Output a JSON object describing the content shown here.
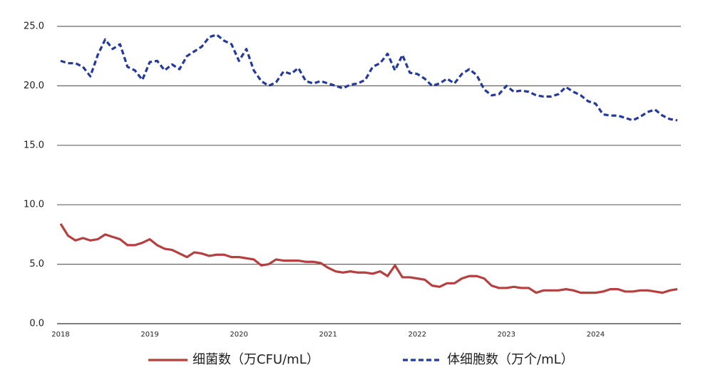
{
  "chart_data": {
    "type": "line",
    "categories": [
      "2018",
      null,
      null,
      null,
      null,
      null,
      null,
      null,
      null,
      null,
      null,
      null,
      "2019",
      null,
      null,
      null,
      null,
      null,
      null,
      null,
      null,
      null,
      null,
      null,
      "2020",
      null,
      null,
      null,
      null,
      null,
      null,
      null,
      null,
      null,
      null,
      null,
      "2021",
      null,
      null,
      null,
      null,
      null,
      null,
      null,
      null,
      null,
      null,
      null,
      "2022",
      null,
      null,
      null,
      null,
      null,
      null,
      null,
      null,
      null,
      null,
      null,
      "2023",
      null,
      null,
      null,
      null,
      null,
      null,
      null,
      null,
      null,
      null,
      null,
      "2024",
      null,
      null,
      null,
      null,
      null,
      null,
      null,
      null,
      null,
      null,
      null
    ],
    "series": [
      {
        "name": "细菌数（万CFU/mL）",
        "color": "#b5403f",
        "dash": false,
        "values": [
          8.4,
          7.4,
          7.0,
          7.2,
          7.0,
          7.1,
          7.5,
          7.3,
          7.1,
          6.6,
          6.6,
          6.8,
          7.1,
          6.6,
          6.3,
          6.2,
          5.9,
          5.6,
          6.0,
          5.9,
          5.7,
          5.8,
          5.8,
          5.6,
          5.6,
          5.5,
          5.4,
          4.9,
          5.0,
          5.4,
          5.3,
          5.3,
          5.3,
          5.2,
          5.2,
          5.1,
          4.7,
          4.4,
          4.3,
          4.4,
          4.3,
          4.3,
          4.2,
          4.4,
          4.0,
          4.9,
          3.9,
          3.9,
          3.8,
          3.7,
          3.2,
          3.1,
          3.4,
          3.4,
          3.8,
          4.0,
          4.0,
          3.8,
          3.2,
          3.0,
          3.0,
          3.1,
          3.0,
          3.0,
          2.6,
          2.8,
          2.8,
          2.8,
          2.9,
          2.8,
          2.6,
          2.6,
          2.6,
          2.7,
          2.9,
          2.9,
          2.7,
          2.7,
          2.8,
          2.8,
          2.7,
          2.6,
          2.8,
          2.9
        ]
      },
      {
        "name": "体细胞数（万个/mL）",
        "color": "#23399b",
        "dash": true,
        "values": [
          22.1,
          21.9,
          21.9,
          21.6,
          20.8,
          22.6,
          23.9,
          23.1,
          23.5,
          21.6,
          21.3,
          20.5,
          22.0,
          22.1,
          21.3,
          21.8,
          21.4,
          22.5,
          22.9,
          23.3,
          24.1,
          24.3,
          23.8,
          23.5,
          22.1,
          23.1,
          21.3,
          20.4,
          20.0,
          20.3,
          21.2,
          21.0,
          21.5,
          20.4,
          20.2,
          20.4,
          20.2,
          20.0,
          19.8,
          20.1,
          20.2,
          20.5,
          21.6,
          21.9,
          22.7,
          21.3,
          22.6,
          21.1,
          21.0,
          20.6,
          20.0,
          20.2,
          20.6,
          20.2,
          21.0,
          21.4,
          20.9,
          19.7,
          19.2,
          19.3,
          20.0,
          19.5,
          19.6,
          19.5,
          19.2,
          19.1,
          19.1,
          19.3,
          19.9,
          19.5,
          19.2,
          18.7,
          18.5,
          17.6,
          17.5,
          17.5,
          17.3,
          17.1,
          17.4,
          17.8,
          18.0,
          17.5,
          17.2,
          17.1
        ]
      }
    ],
    "ylim": [
      0,
      25
    ],
    "yticks": [
      {
        "value": 0,
        "label": "0.0"
      },
      {
        "value": 5,
        "label": "5.0"
      },
      {
        "value": 10,
        "label": "10.0"
      },
      {
        "value": 15,
        "label": "15.0"
      },
      {
        "value": 20,
        "label": "20.0"
      },
      {
        "value": 25,
        "label": "25.0"
      }
    ],
    "grid": true,
    "legend": "bottom"
  }
}
